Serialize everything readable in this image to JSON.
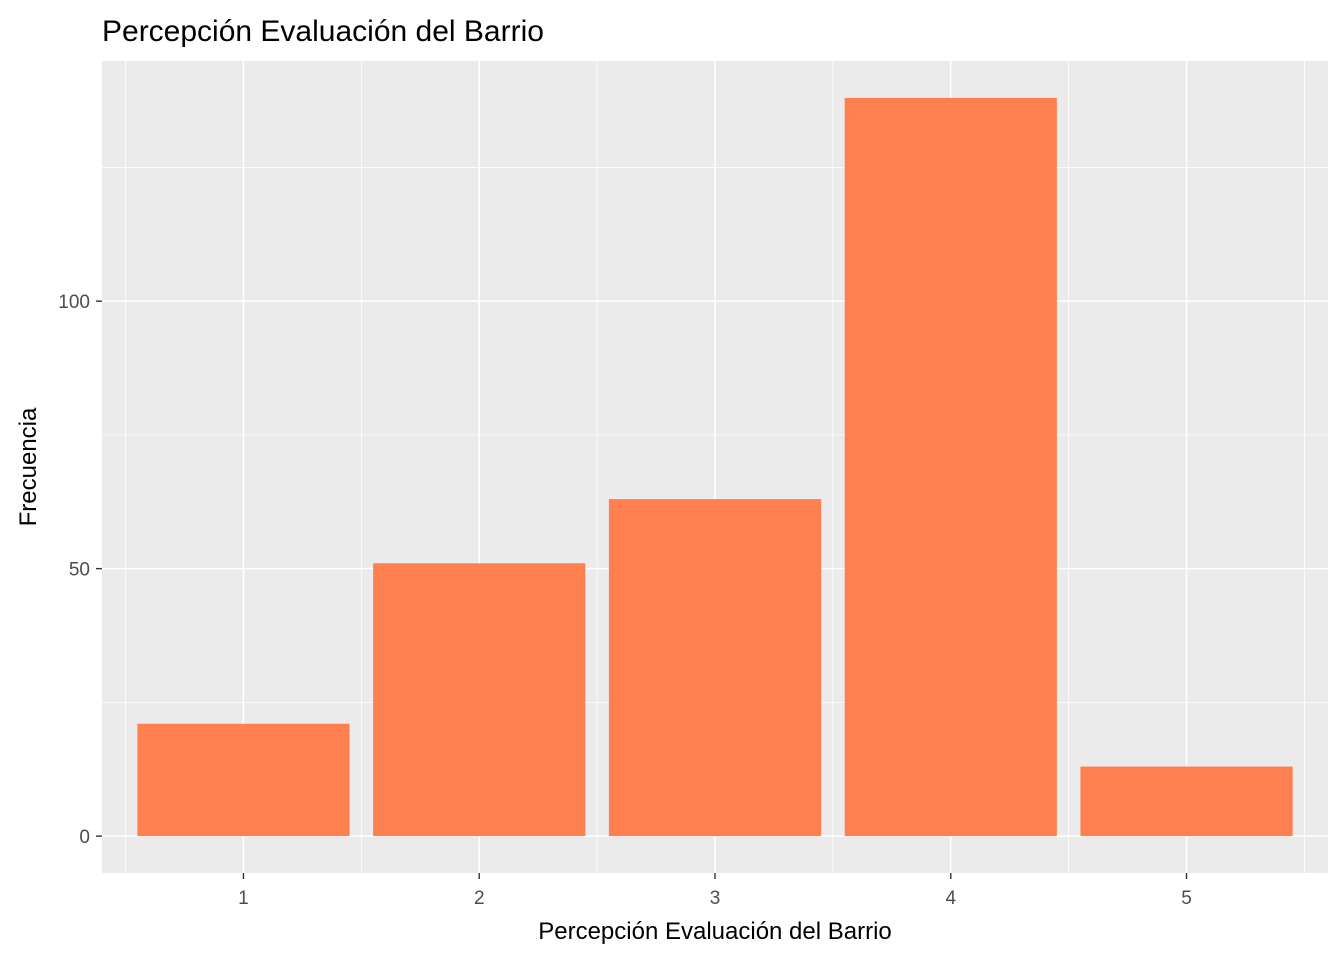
{
  "chart_data": {
    "type": "bar",
    "title": "Percepción Evaluación del Barrio",
    "xlabel": "Percepción Evaluación del Barrio",
    "ylabel": "Frecuencia",
    "categories": [
      "1",
      "2",
      "3",
      "4",
      "5"
    ],
    "values": [
      21,
      51,
      63,
      138,
      13
    ],
    "ylim": [
      -6.9,
      144.9
    ],
    "yticks": [
      0,
      50,
      100
    ],
    "grid": true,
    "legend": "none",
    "colors": {
      "bar": "#ff7f50",
      "panel": "#ebebeb",
      "grid": "#ffffff",
      "tick_label": "#4d4d4d"
    }
  }
}
